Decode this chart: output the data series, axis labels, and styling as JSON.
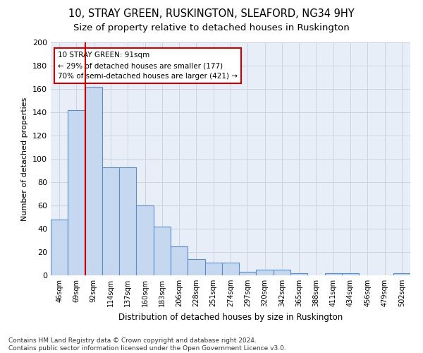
{
  "title1": "10, STRAY GREEN, RUSKINGTON, SLEAFORD, NG34 9HY",
  "title2": "Size of property relative to detached houses in Ruskington",
  "xlabel": "Distribution of detached houses by size in Ruskington",
  "ylabel": "Number of detached properties",
  "categories": [
    "46sqm",
    "69sqm",
    "92sqm",
    "114sqm",
    "137sqm",
    "160sqm",
    "183sqm",
    "206sqm",
    "228sqm",
    "251sqm",
    "274sqm",
    "297sqm",
    "320sqm",
    "342sqm",
    "365sqm",
    "388sqm",
    "411sqm",
    "434sqm",
    "456sqm",
    "479sqm",
    "502sqm"
  ],
  "values": [
    48,
    142,
    162,
    93,
    93,
    60,
    42,
    25,
    14,
    11,
    11,
    3,
    5,
    5,
    2,
    0,
    2,
    2,
    0,
    0,
    2
  ],
  "bar_color": "#c5d8f0",
  "bar_edge_color": "#5b8cc8",
  "vline_color": "#cc0000",
  "annotation_text": "10 STRAY GREEN: 91sqm\n← 29% of detached houses are smaller (177)\n70% of semi-detached houses are larger (421) →",
  "annotation_box_color": "#ffffff",
  "annotation_box_edge": "#cc0000",
  "ylim": [
    0,
    200
  ],
  "yticks": [
    0,
    20,
    40,
    60,
    80,
    100,
    120,
    140,
    160,
    180,
    200
  ],
  "grid_color": "#c8d0dc",
  "bg_color": "#e8eef8",
  "footer": "Contains HM Land Registry data © Crown copyright and database right 2024.\nContains public sector information licensed under the Open Government Licence v3.0.",
  "title1_fontsize": 10.5,
  "title2_fontsize": 9.5,
  "xlabel_fontsize": 8.5,
  "ylabel_fontsize": 8,
  "footer_fontsize": 6.5,
  "tick_fontsize": 8,
  "xtick_fontsize": 7
}
